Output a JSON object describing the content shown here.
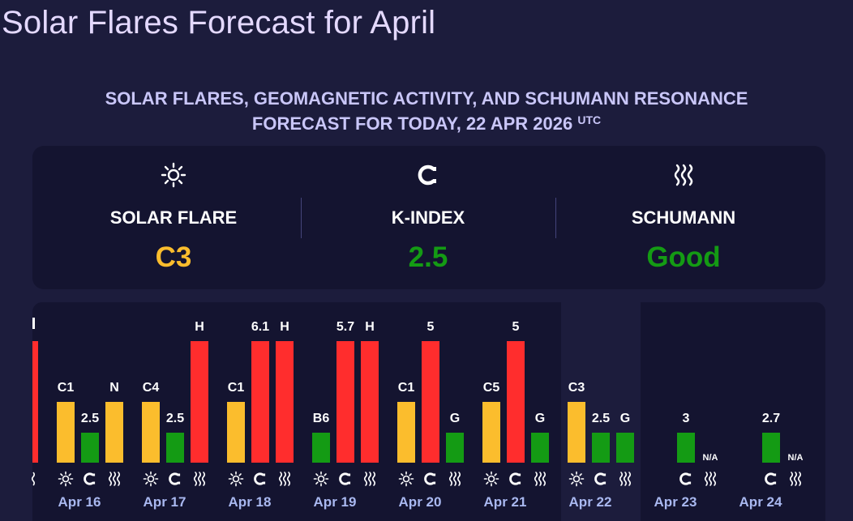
{
  "page": {
    "title": "Solar Flares Forecast for April"
  },
  "subhead": {
    "line1": "SOLAR FLARES, GEOMAGNETIC ACTIVITY, AND SCHUMANN RESONANCE",
    "line2": "FORECAST FOR TODAY, 22 APR 2026",
    "tz": "UTC"
  },
  "summary": {
    "solar": {
      "icon": "sun-icon",
      "label": "SOLAR FLARE",
      "value": "C3",
      "color": "#fbbd2d"
    },
    "kindex": {
      "icon": "magnet-icon",
      "label": "K-INDEX",
      "value": "2.5",
      "color": "#149b14"
    },
    "schumann": {
      "icon": "waves-icon",
      "label": "SCHUMANN",
      "value": "Good",
      "color": "#149b14"
    }
  },
  "colors": {
    "flare": "#fbbd2d",
    "low": "#149b14",
    "high": "#ff2d2d"
  },
  "chart_data": {
    "type": "bar",
    "categories": [
      "Apr 16",
      "Apr 17",
      "Apr 18",
      "Apr 19",
      "Apr 20",
      "Apr 21",
      "Apr 22",
      "Apr 23",
      "Apr 24"
    ],
    "series": [
      {
        "labels": [
          "C1",
          "C4",
          "C1",
          "B6",
          "C1",
          "C5",
          "C3",
          "",
          ""
        ],
        "levels": [
          2,
          2,
          2,
          1,
          2,
          2,
          2,
          0,
          0
        ],
        "colors": [
          "#fbbd2d",
          "#fbbd2d",
          "#fbbd2d",
          "#149b14",
          "#fbbd2d",
          "#fbbd2d",
          "#fbbd2d",
          "",
          ""
        ]
      },
      {
        "labels": [
          "2.5",
          "2.5",
          "6.1",
          "5.7",
          "5",
          "5",
          "2.5",
          "3",
          "2.7"
        ],
        "levels": [
          1,
          1,
          4,
          4,
          4,
          4,
          1,
          1,
          1
        ],
        "colors": [
          "#149b14",
          "#149b14",
          "#ff2d2d",
          "#ff2d2d",
          "#ff2d2d",
          "#ff2d2d",
          "#149b14",
          "#149b14",
          "#149b14"
        ]
      },
      {
        "labels": [
          "N",
          "H",
          "H",
          "H",
          "G",
          "G",
          "G",
          "N/A",
          "N/A"
        ],
        "levels": [
          2,
          4,
          4,
          4,
          1,
          1,
          1,
          0,
          0
        ],
        "colors": [
          "#fbbd2d",
          "#ff2d2d",
          "#ff2d2d",
          "#ff2d2d",
          "#149b14",
          "#149b14",
          "#149b14",
          "",
          ""
        ]
      }
    ],
    "icons": [
      "sun-icon",
      "magnet-icon",
      "waves-icon"
    ]
  }
}
